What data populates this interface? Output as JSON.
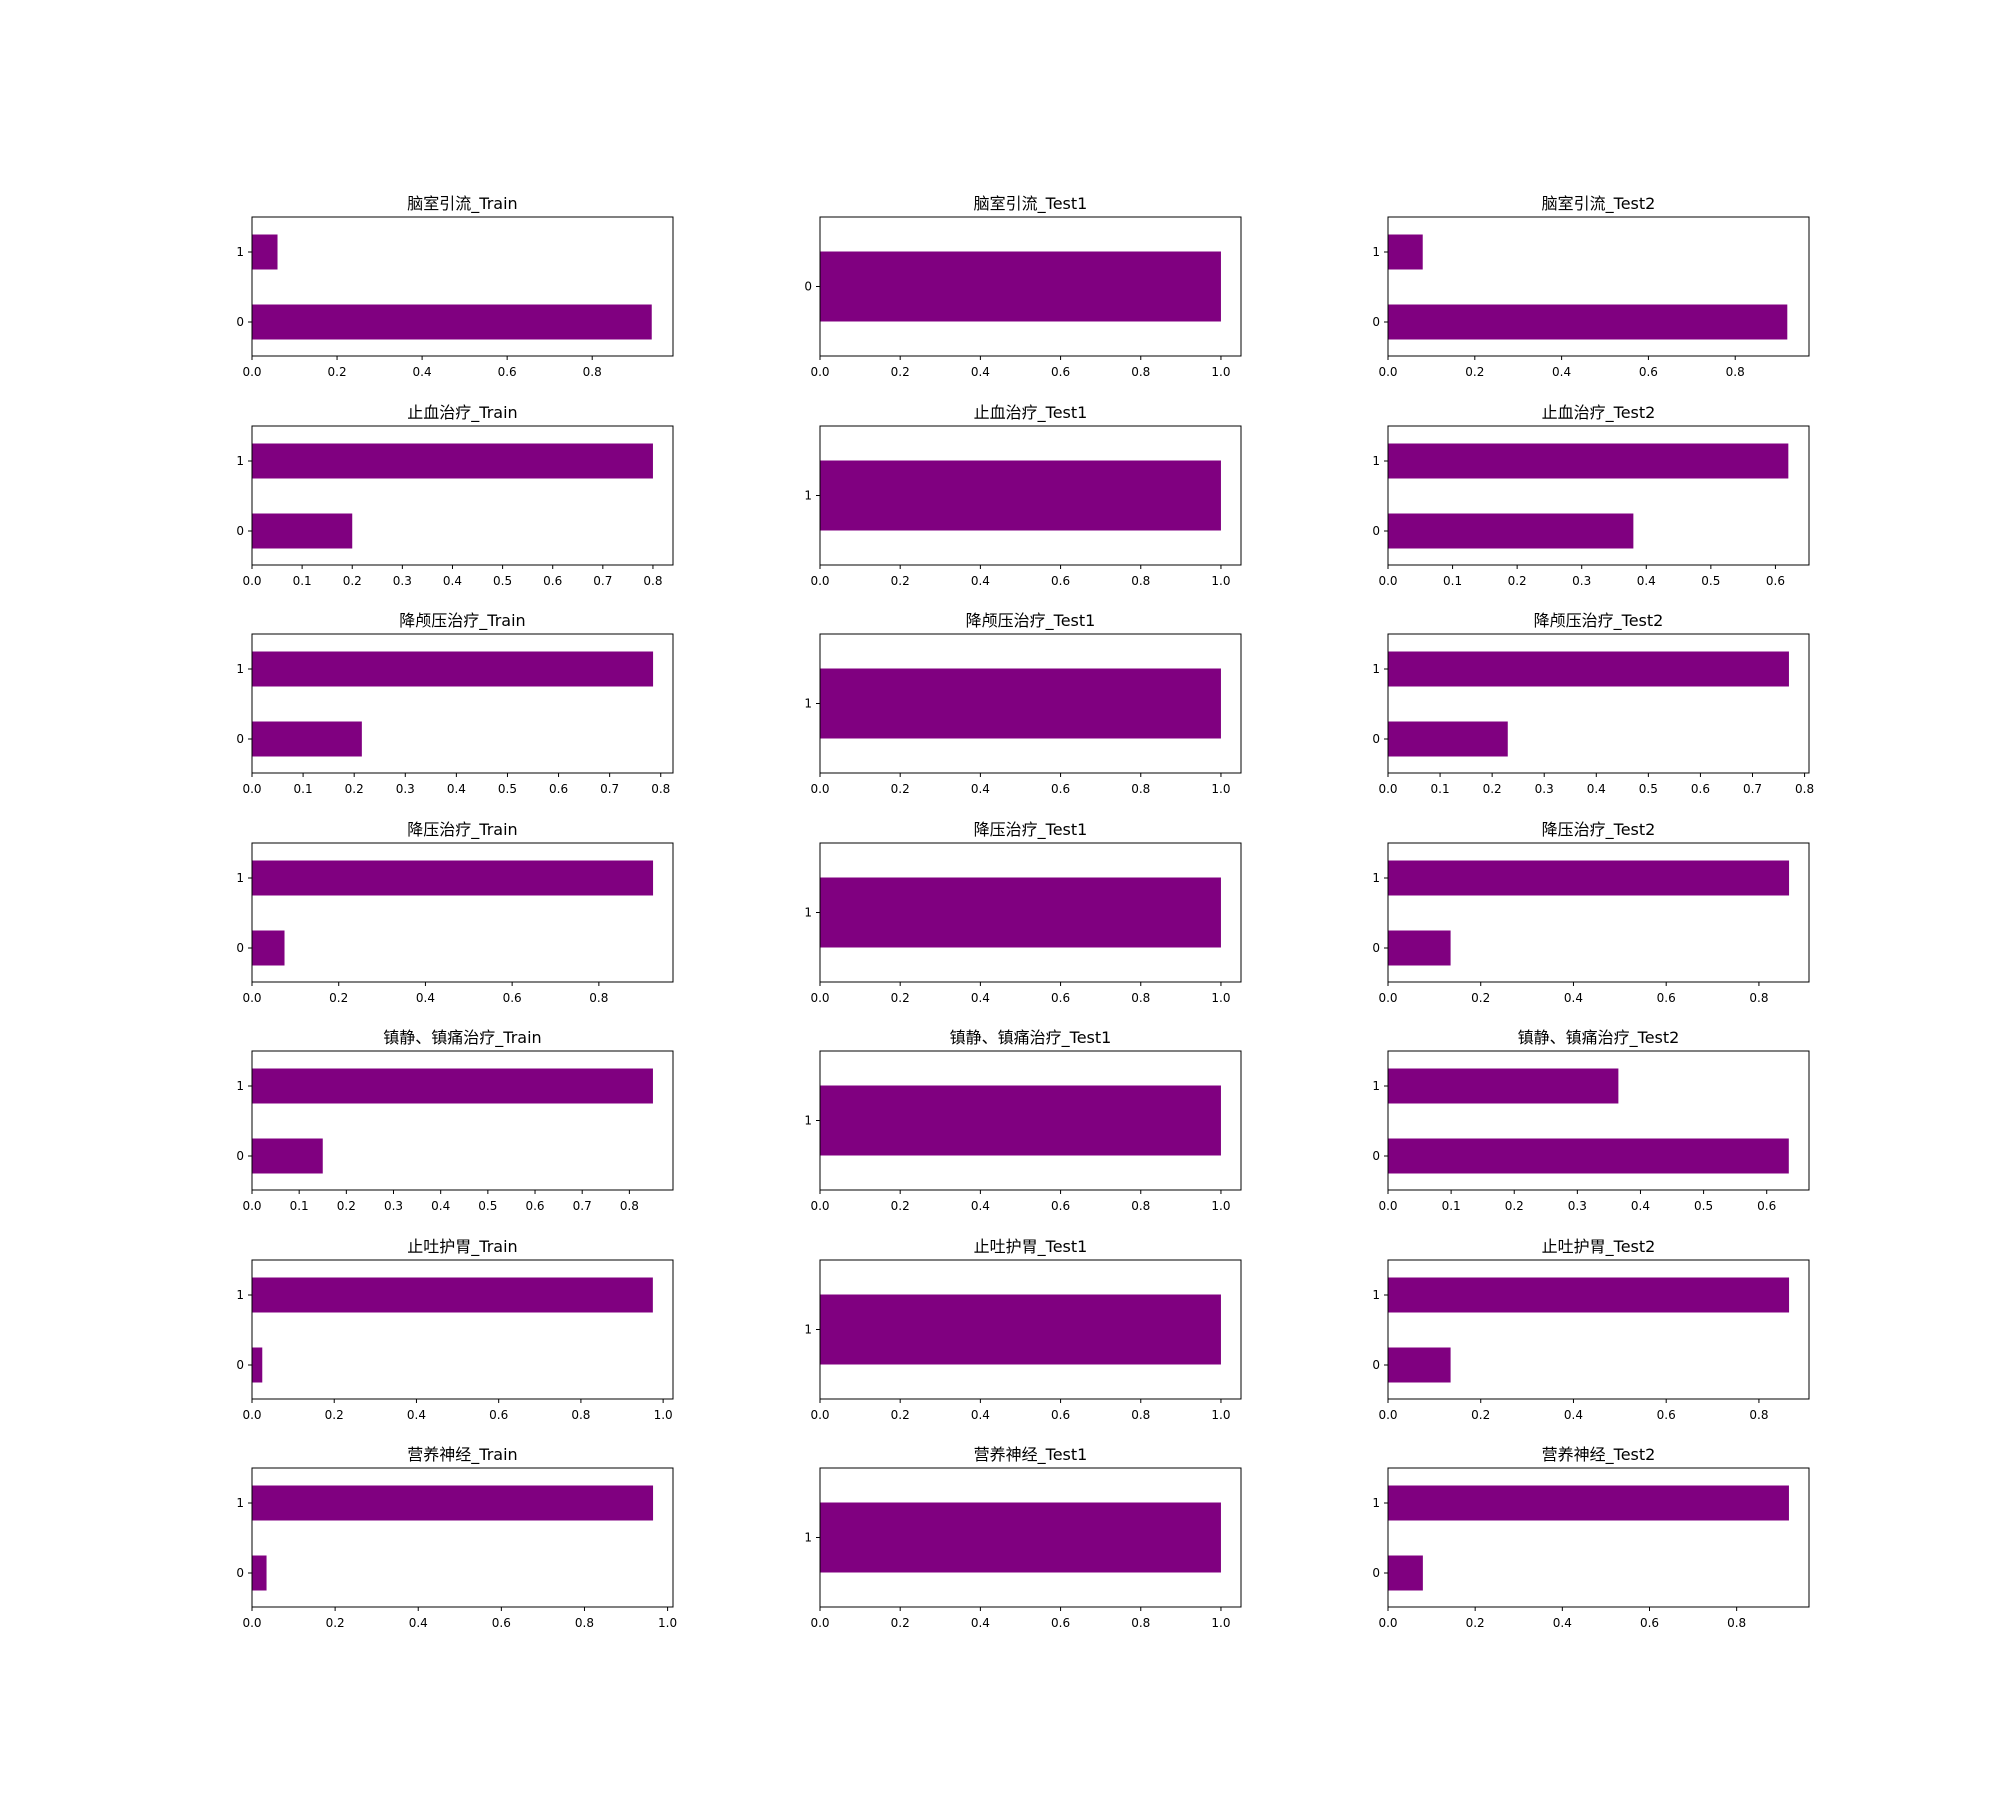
{
  "figure": {
    "bar_color": "#800080",
    "grid": false,
    "layout": "7 rows x 3 columns of horizontal bar charts"
  },
  "chart_data": [
    {
      "type": "bar",
      "orientation": "horizontal",
      "title": "脑室引流_Train",
      "categories": [
        "0",
        "1"
      ],
      "values": [
        0.94,
        0.06
      ],
      "xlim": [
        0,
        0.99
      ],
      "xticks": [
        "0.0",
        "0.2",
        "0.4",
        "0.6",
        "0.8"
      ]
    },
    {
      "type": "bar",
      "orientation": "horizontal",
      "title": "脑室引流_Test1",
      "categories": [
        "0"
      ],
      "values": [
        1.0
      ],
      "xlim": [
        0,
        1.05
      ],
      "xticks": [
        "0.0",
        "0.2",
        "0.4",
        "0.6",
        "0.8",
        "1.0"
      ]
    },
    {
      "type": "bar",
      "orientation": "horizontal",
      "title": "脑室引流_Test2",
      "categories": [
        "0",
        "1"
      ],
      "values": [
        0.92,
        0.08
      ],
      "xlim": [
        0,
        0.97
      ],
      "xticks": [
        "0.0",
        "0.2",
        "0.4",
        "0.6",
        "0.8"
      ]
    },
    {
      "type": "bar",
      "orientation": "horizontal",
      "title": "止血治疗_Train",
      "categories": [
        "0",
        "1"
      ],
      "values": [
        0.2,
        0.8
      ],
      "xlim": [
        0,
        0.84
      ],
      "xticks": [
        "0.0",
        "0.1",
        "0.2",
        "0.3",
        "0.4",
        "0.5",
        "0.6",
        "0.7",
        "0.8"
      ]
    },
    {
      "type": "bar",
      "orientation": "horizontal",
      "title": "止血治疗_Test1",
      "categories": [
        "1"
      ],
      "values": [
        1.0
      ],
      "xlim": [
        0,
        1.05
      ],
      "xticks": [
        "0.0",
        "0.2",
        "0.4",
        "0.6",
        "0.8",
        "1.0"
      ]
    },
    {
      "type": "bar",
      "orientation": "horizontal",
      "title": "止血治疗_Test2",
      "categories": [
        "0",
        "1"
      ],
      "values": [
        0.38,
        0.62
      ],
      "xlim": [
        0,
        0.652
      ],
      "xticks": [
        "0.0",
        "0.1",
        "0.2",
        "0.3",
        "0.4",
        "0.5",
        "0.6"
      ]
    },
    {
      "type": "bar",
      "orientation": "horizontal",
      "title": "降颅压治疗_Train",
      "categories": [
        "0",
        "1"
      ],
      "values": [
        0.215,
        0.785
      ],
      "xlim": [
        0,
        0.824
      ],
      "xticks": [
        "0.0",
        "0.1",
        "0.2",
        "0.3",
        "0.4",
        "0.5",
        "0.6",
        "0.7",
        "0.8"
      ]
    },
    {
      "type": "bar",
      "orientation": "horizontal",
      "title": "降颅压治疗_Test1",
      "categories": [
        "1"
      ],
      "values": [
        1.0
      ],
      "xlim": [
        0,
        1.05
      ],
      "xticks": [
        "0.0",
        "0.2",
        "0.4",
        "0.6",
        "0.8",
        "1.0"
      ]
    },
    {
      "type": "bar",
      "orientation": "horizontal",
      "title": "降颅压治疗_Test2",
      "categories": [
        "0",
        "1"
      ],
      "values": [
        0.23,
        0.77
      ],
      "xlim": [
        0,
        0.8085
      ],
      "xticks": [
        "0.0",
        "0.1",
        "0.2",
        "0.3",
        "0.4",
        "0.5",
        "0.6",
        "0.7",
        "0.8"
      ]
    },
    {
      "type": "bar",
      "orientation": "horizontal",
      "title": "降压治疗_Train",
      "categories": [
        "0",
        "1"
      ],
      "values": [
        0.075,
        0.925
      ],
      "xlim": [
        0,
        0.971
      ],
      "xticks": [
        "0.0",
        "0.2",
        "0.4",
        "0.6",
        "0.8"
      ]
    },
    {
      "type": "bar",
      "orientation": "horizontal",
      "title": "降压治疗_Test1",
      "categories": [
        "1"
      ],
      "values": [
        1.0
      ],
      "xlim": [
        0,
        1.05
      ],
      "xticks": [
        "0.0",
        "0.2",
        "0.4",
        "0.6",
        "0.8",
        "1.0"
      ]
    },
    {
      "type": "bar",
      "orientation": "horizontal",
      "title": "降压治疗_Test2",
      "categories": [
        "0",
        "1"
      ],
      "values": [
        0.135,
        0.865
      ],
      "xlim": [
        0,
        0.908
      ],
      "xticks": [
        "0.0",
        "0.2",
        "0.4",
        "0.6",
        "0.8"
      ]
    },
    {
      "type": "bar",
      "orientation": "horizontal",
      "title": "镇静、镇痛治疗_Train",
      "categories": [
        "0",
        "1"
      ],
      "values": [
        0.15,
        0.85
      ],
      "xlim": [
        0,
        0.8925
      ],
      "xticks": [
        "0.0",
        "0.1",
        "0.2",
        "0.3",
        "0.4",
        "0.5",
        "0.6",
        "0.7",
        "0.8"
      ]
    },
    {
      "type": "bar",
      "orientation": "horizontal",
      "title": "镇静、镇痛治疗_Test1",
      "categories": [
        "1"
      ],
      "values": [
        1.0
      ],
      "xlim": [
        0,
        1.05
      ],
      "xticks": [
        "0.0",
        "0.2",
        "0.4",
        "0.6",
        "0.8",
        "1.0"
      ]
    },
    {
      "type": "bar",
      "orientation": "horizontal",
      "title": "镇静、镇痛治疗_Test2",
      "categories": [
        "0",
        "1"
      ],
      "values": [
        0.635,
        0.365
      ],
      "xlim": [
        0,
        0.667
      ],
      "xticks": [
        "0.0",
        "0.1",
        "0.2",
        "0.3",
        "0.4",
        "0.5",
        "0.6"
      ]
    },
    {
      "type": "bar",
      "orientation": "horizontal",
      "title": "止吐护胃_Train",
      "categories": [
        "0",
        "1"
      ],
      "values": [
        0.025,
        0.975
      ],
      "xlim": [
        0,
        1.024
      ],
      "xticks": [
        "0.0",
        "0.2",
        "0.4",
        "0.6",
        "0.8",
        "1.0"
      ]
    },
    {
      "type": "bar",
      "orientation": "horizontal",
      "title": "止吐护胃_Test1",
      "categories": [
        "1"
      ],
      "values": [
        1.0
      ],
      "xlim": [
        0,
        1.05
      ],
      "xticks": [
        "0.0",
        "0.2",
        "0.4",
        "0.6",
        "0.8",
        "1.0"
      ]
    },
    {
      "type": "bar",
      "orientation": "horizontal",
      "title": "止吐护胃_Test2",
      "categories": [
        "0",
        "1"
      ],
      "values": [
        0.135,
        0.865
      ],
      "xlim": [
        0,
        0.908
      ],
      "xticks": [
        "0.0",
        "0.2",
        "0.4",
        "0.6",
        "0.8"
      ]
    },
    {
      "type": "bar",
      "orientation": "horizontal",
      "title": "营养神经_Train",
      "categories": [
        "0",
        "1"
      ],
      "values": [
        0.035,
        0.965
      ],
      "xlim": [
        0,
        1.013
      ],
      "xticks": [
        "0.0",
        "0.2",
        "0.4",
        "0.6",
        "0.8",
        "1.0"
      ]
    },
    {
      "type": "bar",
      "orientation": "horizontal",
      "title": "营养神经_Test1",
      "categories": [
        "1"
      ],
      "values": [
        1.0
      ],
      "xlim": [
        0,
        1.05
      ],
      "xticks": [
        "0.0",
        "0.2",
        "0.4",
        "0.6",
        "0.8",
        "1.0"
      ]
    },
    {
      "type": "bar",
      "orientation": "horizontal",
      "title": "营养神经_Test2",
      "categories": [
        "0",
        "1"
      ],
      "values": [
        0.08,
        0.92
      ],
      "xlim": [
        0,
        0.966
      ],
      "xticks": [
        "0.0",
        "0.2",
        "0.4",
        "0.6",
        "0.8"
      ]
    }
  ]
}
